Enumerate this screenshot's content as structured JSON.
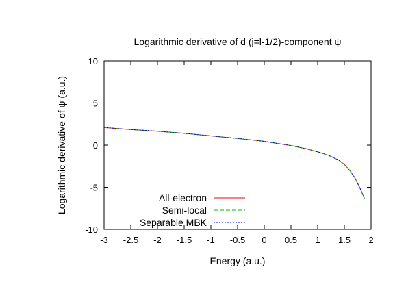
{
  "chart_data": {
    "type": "line",
    "title": "Logarithmic derivative of d (j=l-1/2)-component ψ",
    "xlabel": "Energy (a.u.)",
    "ylabel": "Logarithmic derivative of ψ (a.u.)",
    "xlim": [
      -3,
      2
    ],
    "ylim": [
      -10,
      10
    ],
    "x_ticks": [
      "-3",
      "-2.5",
      "-2",
      "-1.5",
      "-1",
      "-0.5",
      "0",
      "0.5",
      "1",
      "1.5",
      "2"
    ],
    "y_ticks": [
      "10",
      "5",
      "0",
      "-5",
      "-10"
    ],
    "legend_position": "bottom-left",
    "series": [
      {
        "name": "All-electron",
        "color": "#ff0000",
        "dash": "solid",
        "x": [
          -3.0,
          -2.5,
          -2.0,
          -1.5,
          -1.0,
          -0.5,
          0.0,
          0.5,
          0.8,
          1.0,
          1.2,
          1.4,
          1.5,
          1.6,
          1.7,
          1.8,
          1.88
        ],
        "y": [
          2.1,
          1.85,
          1.65,
          1.4,
          1.1,
          0.8,
          0.45,
          -0.05,
          -0.45,
          -0.8,
          -1.2,
          -1.8,
          -2.3,
          -3.0,
          -3.9,
          -5.2,
          -6.4
        ]
      },
      {
        "name": "Semi-local",
        "color": "#00c000",
        "dash": "6,3",
        "x": [
          -3.0,
          -2.5,
          -2.0,
          -1.5,
          -1.0,
          -0.5,
          0.0,
          0.5,
          0.8,
          1.0,
          1.2,
          1.4,
          1.5,
          1.6,
          1.7,
          1.8,
          1.88
        ],
        "y": [
          2.1,
          1.85,
          1.65,
          1.4,
          1.1,
          0.8,
          0.45,
          -0.05,
          -0.45,
          -0.8,
          -1.2,
          -1.8,
          -2.3,
          -3.0,
          -3.9,
          -5.2,
          -6.4
        ]
      },
      {
        "name": "Separable MBK",
        "color": "#0000ff",
        "dash": "2,2",
        "x": [
          -3.0,
          -2.5,
          -2.0,
          -1.5,
          -1.0,
          -0.5,
          0.0,
          0.5,
          0.8,
          1.0,
          1.2,
          1.4,
          1.5,
          1.6,
          1.7,
          1.8,
          1.88
        ],
        "y": [
          2.1,
          1.85,
          1.65,
          1.4,
          1.1,
          0.8,
          0.45,
          -0.05,
          -0.45,
          -0.8,
          -1.2,
          -1.8,
          -2.3,
          -3.0,
          -3.9,
          -5.2,
          -6.4
        ]
      }
    ]
  }
}
